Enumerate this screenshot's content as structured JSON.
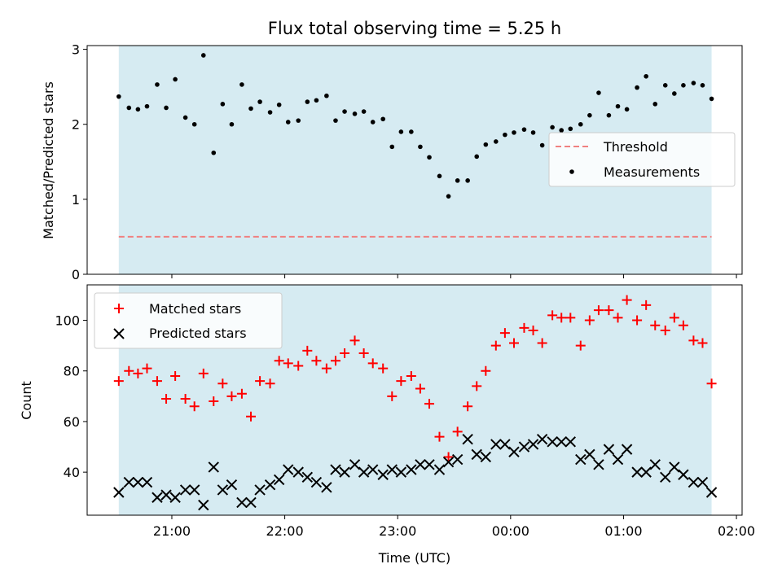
{
  "chart_data": [
    {
      "type": "scatter",
      "title": "Flux total observing time = 5.25 h",
      "xlabel": "",
      "ylabel": "Matched/Predicted stars",
      "x_tick_labels": [
        "21:00",
        "22:00",
        "23:00",
        "00:00",
        "01:00",
        "02:00"
      ],
      "x_tick_hours": [
        21,
        22,
        23,
        24,
        25,
        26
      ],
      "xlim_hours": [
        20.25,
        26.05
      ],
      "observing_window_hours": [
        20.53,
        25.78
      ],
      "ylim": [
        0,
        3.05
      ],
      "y_ticks": [
        0,
        1,
        2,
        3
      ],
      "legend_position": "center-right",
      "threshold": {
        "name": "Threshold",
        "value": 0.5,
        "color": "#f08080"
      },
      "measurements": {
        "name": "Measurements",
        "color": "#000000",
        "x_hours": [
          20.53,
          20.62,
          20.7,
          20.78,
          20.87,
          20.95,
          21.03,
          21.12,
          21.2,
          21.28,
          21.37,
          21.45,
          21.53,
          21.62,
          21.7,
          21.78,
          21.87,
          21.95,
          22.03,
          22.12,
          22.2,
          22.28,
          22.37,
          22.45,
          22.53,
          22.62,
          22.7,
          22.78,
          22.87,
          22.95,
          23.03,
          23.12,
          23.2,
          23.28,
          23.37,
          23.45,
          23.53,
          23.62,
          23.7,
          23.78,
          23.87,
          23.95,
          24.03,
          24.12,
          24.2,
          24.28,
          24.37,
          24.45,
          24.53,
          24.62,
          24.7,
          24.78,
          24.87,
          24.95,
          25.03,
          25.12,
          25.2,
          25.28,
          25.37,
          25.45,
          25.53,
          25.62,
          25.7,
          25.78
        ],
        "y": [
          2.37,
          2.22,
          2.2,
          2.24,
          2.53,
          2.22,
          2.6,
          2.09,
          2.0,
          2.92,
          1.62,
          2.27,
          2.0,
          2.53,
          2.21,
          2.3,
          2.16,
          2.26,
          2.03,
          2.05,
          2.3,
          2.32,
          2.38,
          2.05,
          2.17,
          2.14,
          2.17,
          2.03,
          2.07,
          1.7,
          1.9,
          1.9,
          1.7,
          1.56,
          1.31,
          1.04,
          1.25,
          1.25,
          1.57,
          1.73,
          1.77,
          1.86,
          1.89,
          1.93,
          1.89,
          1.72,
          1.96,
          1.92,
          1.94,
          2.0,
          2.12,
          2.42,
          2.12,
          2.24,
          2.2,
          2.49,
          2.64,
          2.27,
          2.52,
          2.41,
          2.52,
          2.55,
          2.52,
          2.34
        ]
      }
    },
    {
      "type": "scatter",
      "title": "",
      "xlabel": "Time (UTC)",
      "ylabel": "Count",
      "x_tick_labels": [
        "21:00",
        "22:00",
        "23:00",
        "00:00",
        "01:00",
        "02:00"
      ],
      "x_tick_hours": [
        21,
        22,
        23,
        24,
        25,
        26
      ],
      "xlim_hours": [
        20.25,
        26.05
      ],
      "observing_window_hours": [
        20.53,
        25.78
      ],
      "ylim": [
        23,
        114
      ],
      "y_ticks": [
        40,
        60,
        80,
        100
      ],
      "legend_position": "top-left",
      "series": [
        {
          "name": "Matched stars",
          "marker": "+",
          "color": "#ff0000",
          "x_hours": [
            20.53,
            20.62,
            20.7,
            20.78,
            20.87,
            20.95,
            21.03,
            21.12,
            21.2,
            21.28,
            21.37,
            21.45,
            21.53,
            21.62,
            21.7,
            21.78,
            21.87,
            21.95,
            22.03,
            22.12,
            22.2,
            22.28,
            22.37,
            22.45,
            22.53,
            22.62,
            22.7,
            22.78,
            22.87,
            22.95,
            23.03,
            23.12,
            23.2,
            23.28,
            23.37,
            23.45,
            23.53,
            23.62,
            23.7,
            23.78,
            23.87,
            23.95,
            24.03,
            24.12,
            24.2,
            24.28,
            24.37,
            24.45,
            24.53,
            24.62,
            24.7,
            24.78,
            24.87,
            24.95,
            25.03,
            25.12,
            25.2,
            25.28,
            25.37,
            25.45,
            25.53,
            25.62,
            25.7,
            25.78
          ],
          "values": [
            76,
            80,
            79,
            81,
            76,
            69,
            78,
            69,
            66,
            79,
            68,
            75,
            70,
            71,
            62,
            76,
            75,
            84,
            83,
            82,
            88,
            84,
            81,
            84,
            87,
            92,
            87,
            83,
            81,
            70,
            76,
            78,
            73,
            67,
            54,
            46,
            56,
            66,
            74,
            80,
            90,
            95,
            91,
            97,
            96,
            91,
            102,
            101,
            101,
            90,
            100,
            104,
            104,
            101,
            108,
            100,
            106,
            98,
            96,
            101,
            98,
            92,
            91,
            75
          ]
        },
        {
          "name": "Predicted stars",
          "marker": "x",
          "color": "#000000",
          "x_hours": [
            20.53,
            20.62,
            20.7,
            20.78,
            20.87,
            20.95,
            21.03,
            21.12,
            21.2,
            21.28,
            21.37,
            21.45,
            21.53,
            21.62,
            21.7,
            21.78,
            21.87,
            21.95,
            22.03,
            22.12,
            22.2,
            22.28,
            22.37,
            22.45,
            22.53,
            22.62,
            22.7,
            22.78,
            22.87,
            22.95,
            23.03,
            23.12,
            23.2,
            23.28,
            23.37,
            23.45,
            23.53,
            23.62,
            23.7,
            23.78,
            23.87,
            23.95,
            24.03,
            24.12,
            24.2,
            24.28,
            24.37,
            24.45,
            24.53,
            24.62,
            24.7,
            24.78,
            24.87,
            24.95,
            25.03,
            25.12,
            25.2,
            25.28,
            25.37,
            25.45,
            25.53,
            25.62,
            25.7,
            25.78
          ],
          "values": [
            32,
            36,
            36,
            36,
            30,
            31,
            30,
            33,
            33,
            27,
            42,
            33,
            35,
            28,
            28,
            33,
            35,
            37,
            41,
            40,
            38,
            36,
            34,
            41,
            40,
            43,
            40,
            41,
            39,
            41,
            40,
            41,
            43,
            43,
            41,
            44,
            45,
            53,
            47,
            46,
            51,
            51,
            48,
            50,
            51,
            53,
            52,
            52,
            52,
            45,
            47,
            43,
            49,
            45,
            49,
            40,
            40,
            43,
            38,
            42,
            39,
            36,
            36,
            32
          ]
        }
      ]
    }
  ]
}
